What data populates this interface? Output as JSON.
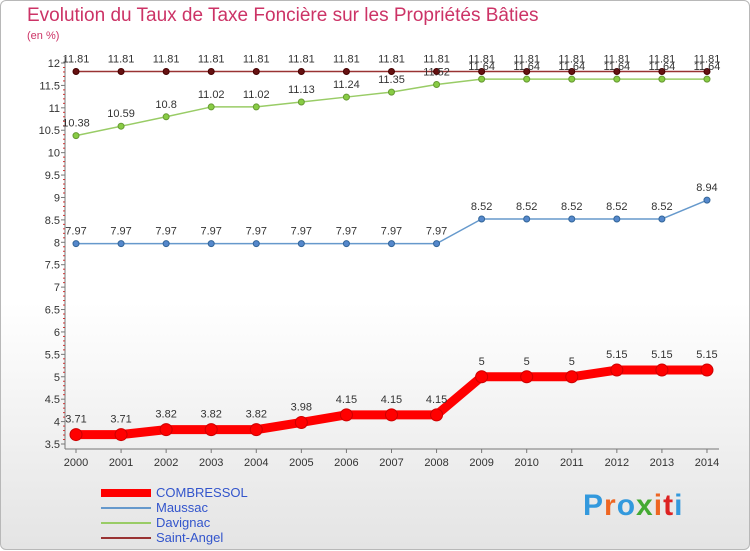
{
  "title": "Evolution du Taux de Taxe Foncière sur les Propriétés Bâties",
  "unit_label": "(en %)",
  "logo_text": "Proxiti",
  "chart_data": {
    "type": "line",
    "title": "Evolution du Taux de Taxe Foncière sur les Propriétés Bâties",
    "ylabel": "(en %)",
    "xlabel": "",
    "x": [
      "2000",
      "2001",
      "2002",
      "2003",
      "2004",
      "2005",
      "2006",
      "2007",
      "2008",
      "2009",
      "2010",
      "2011",
      "2012",
      "2013",
      "2014"
    ],
    "ylim": [
      3.5,
      12
    ],
    "yticks": [
      "3.5",
      "4",
      "4.5",
      "5",
      "5.5",
      "6",
      "6.5",
      "7",
      "7.5",
      "8",
      "8.5",
      "9",
      "9.5",
      "10",
      "10.5",
      "11",
      "11.5",
      "12"
    ],
    "grid": false,
    "legend_position": "bottom-left",
    "series": [
      {
        "name": "COMBRESSOL",
        "color": "#ff0000",
        "labels": [
          "3.71",
          "3.71",
          "3.82",
          "3.82",
          "3.82",
          "3.98",
          "4.15",
          "4.15",
          "4.15",
          "5",
          "5",
          "5",
          "5.15",
          "5.15",
          "5.15"
        ]
      },
      {
        "name": "Maussac",
        "color": "#6699cc",
        "labels": [
          "7.97",
          "7.97",
          "7.97",
          "7.97",
          "7.97",
          "7.97",
          "7.97",
          "7.97",
          "7.97",
          "8.52",
          "8.52",
          "8.52",
          "8.52",
          "8.52",
          "8.94"
        ]
      },
      {
        "name": "Davignac",
        "color": "#99cc66",
        "labels": [
          "10.38",
          "10.59",
          "10.8",
          "11.02",
          "11.02",
          "11.13",
          "11.24",
          "11.35",
          "11.52",
          "11.64",
          "11.64",
          "11.64",
          "11.64",
          "11.64",
          "11.64"
        ]
      },
      {
        "name": "Saint-Angel",
        "color": "#993333",
        "labels": [
          "11.81",
          "11.81",
          "11.81",
          "11.81",
          "11.81",
          "11.81",
          "11.81",
          "11.81",
          "11.81",
          "11.81",
          "11.81",
          "11.81",
          "11.81",
          "11.81",
          "11.81"
        ]
      }
    ]
  }
}
